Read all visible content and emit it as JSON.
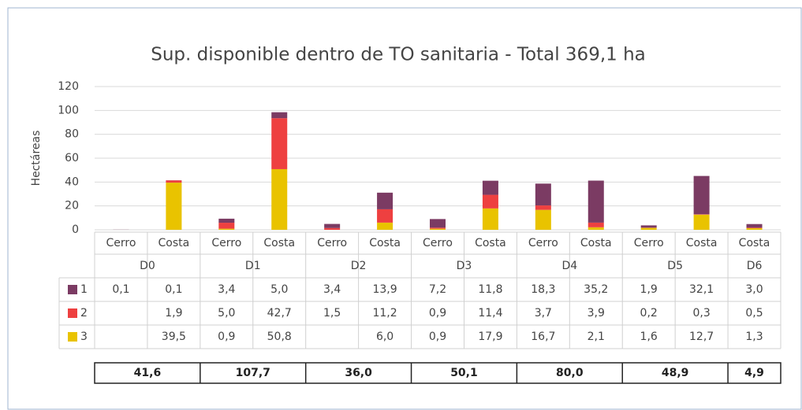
{
  "chart_data": {
    "type": "stacked_bar",
    "title": "Sup. disponible dentro de TO sanitaria - Total 369,1 ha",
    "ylabel": "Hectáreas",
    "ylim": [
      0,
      120
    ],
    "yticks": [
      0,
      20,
      40,
      60,
      80,
      100,
      120
    ],
    "grid": true,
    "groups": [
      {
        "name": "D0",
        "categories": [
          "Cerro",
          "Costa"
        ],
        "total": 41.6,
        "total_label": "41,6"
      },
      {
        "name": "D1",
        "categories": [
          "Cerro",
          "Costa"
        ],
        "total": 107.7,
        "total_label": "107,7"
      },
      {
        "name": "D2",
        "categories": [
          "Cerro",
          "Costa"
        ],
        "total": 36.0,
        "total_label": "36,0"
      },
      {
        "name": "D3",
        "categories": [
          "Cerro",
          "Costa"
        ],
        "total": 50.1,
        "total_label": "50,1"
      },
      {
        "name": "D4",
        "categories": [
          "Cerro",
          "Costa"
        ],
        "total": 80.0,
        "total_label": "80,0"
      },
      {
        "name": "D5",
        "categories": [
          "Cerro",
          "Costa"
        ],
        "total": 48.9,
        "total_label": "48,9"
      },
      {
        "name": "D6",
        "categories": [
          "Costa"
        ],
        "total": 4.9,
        "total_label": "4,9"
      }
    ],
    "series": [
      {
        "name": "1",
        "color": "#7b3b63",
        "values": [
          0.1,
          0.1,
          3.4,
          5.0,
          3.4,
          13.9,
          7.2,
          11.8,
          18.3,
          35.2,
          1.9,
          32.1,
          3.0
        ],
        "value_labels": [
          "0,1",
          "0,1",
          "3,4",
          "5,0",
          "3,4",
          "13,9",
          "7,2",
          "11,8",
          "18,3",
          "35,2",
          "1,9",
          "32,1",
          "3,0"
        ]
      },
      {
        "name": "2",
        "color": "#ee4040",
        "values": [
          null,
          1.9,
          5.0,
          42.7,
          1.5,
          11.2,
          0.9,
          11.4,
          3.7,
          3.9,
          0.2,
          0.3,
          0.5
        ],
        "value_labels": [
          null,
          "1,9",
          "5,0",
          "42,7",
          "1,5",
          "11,2",
          "0,9",
          "11,4",
          "3,7",
          "3,9",
          "0,2",
          "0,3",
          "0,5"
        ]
      },
      {
        "name": "3",
        "color": "#e9c300",
        "values": [
          null,
          39.5,
          0.9,
          50.8,
          null,
          6.0,
          0.9,
          17.9,
          16.7,
          2.1,
          1.6,
          12.7,
          1.3
        ],
        "value_labels": [
          null,
          "39,5",
          "0,9",
          "50,8",
          null,
          "6,0",
          "0,9",
          "17,9",
          "16,7",
          "2,1",
          "1,6",
          "12,7",
          "1,3"
        ]
      }
    ]
  }
}
